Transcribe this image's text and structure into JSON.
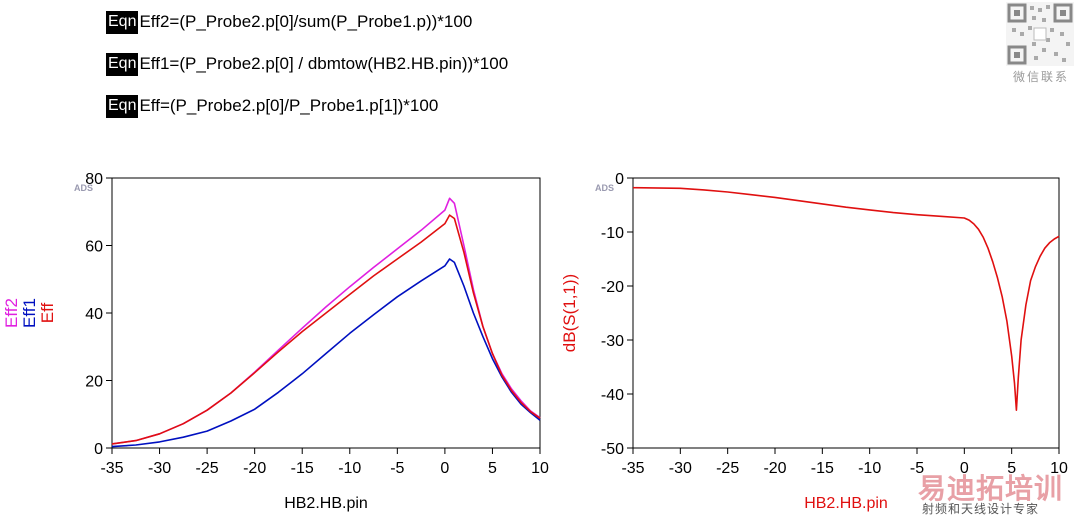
{
  "equations": [
    {
      "tag": "Eqn",
      "text": "Eff2=(P_Probe2.p[0]/sum(P_Probe1.p))*100"
    },
    {
      "tag": "Eqn",
      "text": "Eff1=(P_Probe2.p[0] / dbmtow(HB2.HB.pin))*100"
    },
    {
      "tag": "Eqn",
      "text": "Eff=(P_Probe2.p[0]/P_Probe1.p[1])*100"
    }
  ],
  "watermark": {
    "qr_caption": "微信联系",
    "title": "易迪拓培训",
    "subtitle": "射频和天线设计专家"
  },
  "chart_data": [
    {
      "type": "line",
      "ads_label": "ADS",
      "xlabel": "HB2.HB.pin",
      "xlim": [
        -35,
        10
      ],
      "ylim": [
        0,
        80
      ],
      "xticks": [
        -35,
        -30,
        -25,
        -20,
        -15,
        -10,
        -5,
        0,
        5,
        10
      ],
      "yticks": [
        0,
        20,
        40,
        60,
        80
      ],
      "grid": false,
      "series": [
        {
          "name": "Eff2",
          "color": "#e020e0",
          "x": [
            -35,
            -32.5,
            -30,
            -27.5,
            -25,
            -22.5,
            -20,
            -17.5,
            -15,
            -12.5,
            -10,
            -7.5,
            -5,
            -2.5,
            0,
            0.5,
            1,
            2,
            3,
            4,
            5,
            6,
            7,
            8,
            9,
            10
          ],
          "y": [
            1.2,
            2.2,
            4.2,
            7.2,
            11.2,
            16.3,
            22.5,
            29.0,
            35.5,
            41.8,
            47.8,
            53.5,
            59.0,
            64.5,
            70.5,
            74.0,
            72.5,
            60,
            47,
            36,
            28,
            22,
            17.5,
            14,
            11,
            9
          ]
        },
        {
          "name": "Eff1",
          "color": "#0010c0",
          "x": [
            -35,
            -32.5,
            -30,
            -27.5,
            -25,
            -22.5,
            -20,
            -17.5,
            -15,
            -12.5,
            -10,
            -7.5,
            -5,
            -2.5,
            0,
            0.5,
            1,
            2,
            3,
            4,
            5,
            6,
            7,
            8,
            9,
            10
          ],
          "y": [
            0.4,
            0.9,
            1.8,
            3.2,
            5.0,
            8.0,
            11.5,
            16.5,
            22.0,
            28.0,
            34.0,
            39.5,
            44.8,
            49.5,
            54.0,
            56.0,
            55.0,
            48,
            40,
            33,
            26.5,
            21,
            16.5,
            13,
            10.5,
            8.2
          ]
        },
        {
          "name": "Eff",
          "color": "#e01010",
          "x": [
            -35,
            -32.5,
            -30,
            -27.5,
            -25,
            -22.5,
            -20,
            -17.5,
            -15,
            -12.5,
            -10,
            -7.5,
            -5,
            -2.5,
            0,
            0.5,
            1,
            2,
            3,
            4,
            5,
            6,
            7,
            8,
            9,
            10
          ],
          "y": [
            1.2,
            2.2,
            4.2,
            7.2,
            11.2,
            16.3,
            22.3,
            28.5,
            34.5,
            40.0,
            45.5,
            51.0,
            56.0,
            61.0,
            66.5,
            69.0,
            68.0,
            58,
            46,
            36,
            28,
            21.5,
            17,
            13.5,
            10.8,
            8.8
          ]
        }
      ]
    },
    {
      "type": "line",
      "ads_label": "ADS",
      "xlabel": "HB2.HB.pin",
      "ylabel": "dB(S(1,1))",
      "xlim": [
        -35,
        10
      ],
      "ylim": [
        -50,
        0
      ],
      "xticks": [
        -35,
        -30,
        -25,
        -20,
        -15,
        -10,
        -5,
        0,
        5,
        10
      ],
      "yticks": [
        0,
        -10,
        -20,
        -30,
        -40,
        -50
      ],
      "grid": false,
      "series": [
        {
          "color": "#e01010",
          "x": [
            -35,
            -30,
            -27.5,
            -25,
            -22.5,
            -20,
            -17.5,
            -15,
            -12.5,
            -10,
            -7.5,
            -5,
            -2.5,
            0,
            0.5,
            1,
            1.5,
            2,
            2.5,
            3,
            3.5,
            4,
            4.5,
            5,
            5.3,
            5.5,
            5.7,
            6,
            6.5,
            7,
            7.5,
            8,
            8.5,
            9,
            9.5,
            10
          ],
          "y": [
            -1.8,
            -1.9,
            -2.2,
            -2.6,
            -3.1,
            -3.6,
            -4.2,
            -4.8,
            -5.4,
            -5.9,
            -6.4,
            -6.8,
            -7.1,
            -7.4,
            -7.8,
            -8.5,
            -9.5,
            -11,
            -13,
            -15.5,
            -18.5,
            -22,
            -26.5,
            -33,
            -38,
            -43,
            -37,
            -30,
            -23.5,
            -19,
            -16.5,
            -14.5,
            -13,
            -12,
            -11.3,
            -10.8
          ]
        }
      ]
    }
  ]
}
